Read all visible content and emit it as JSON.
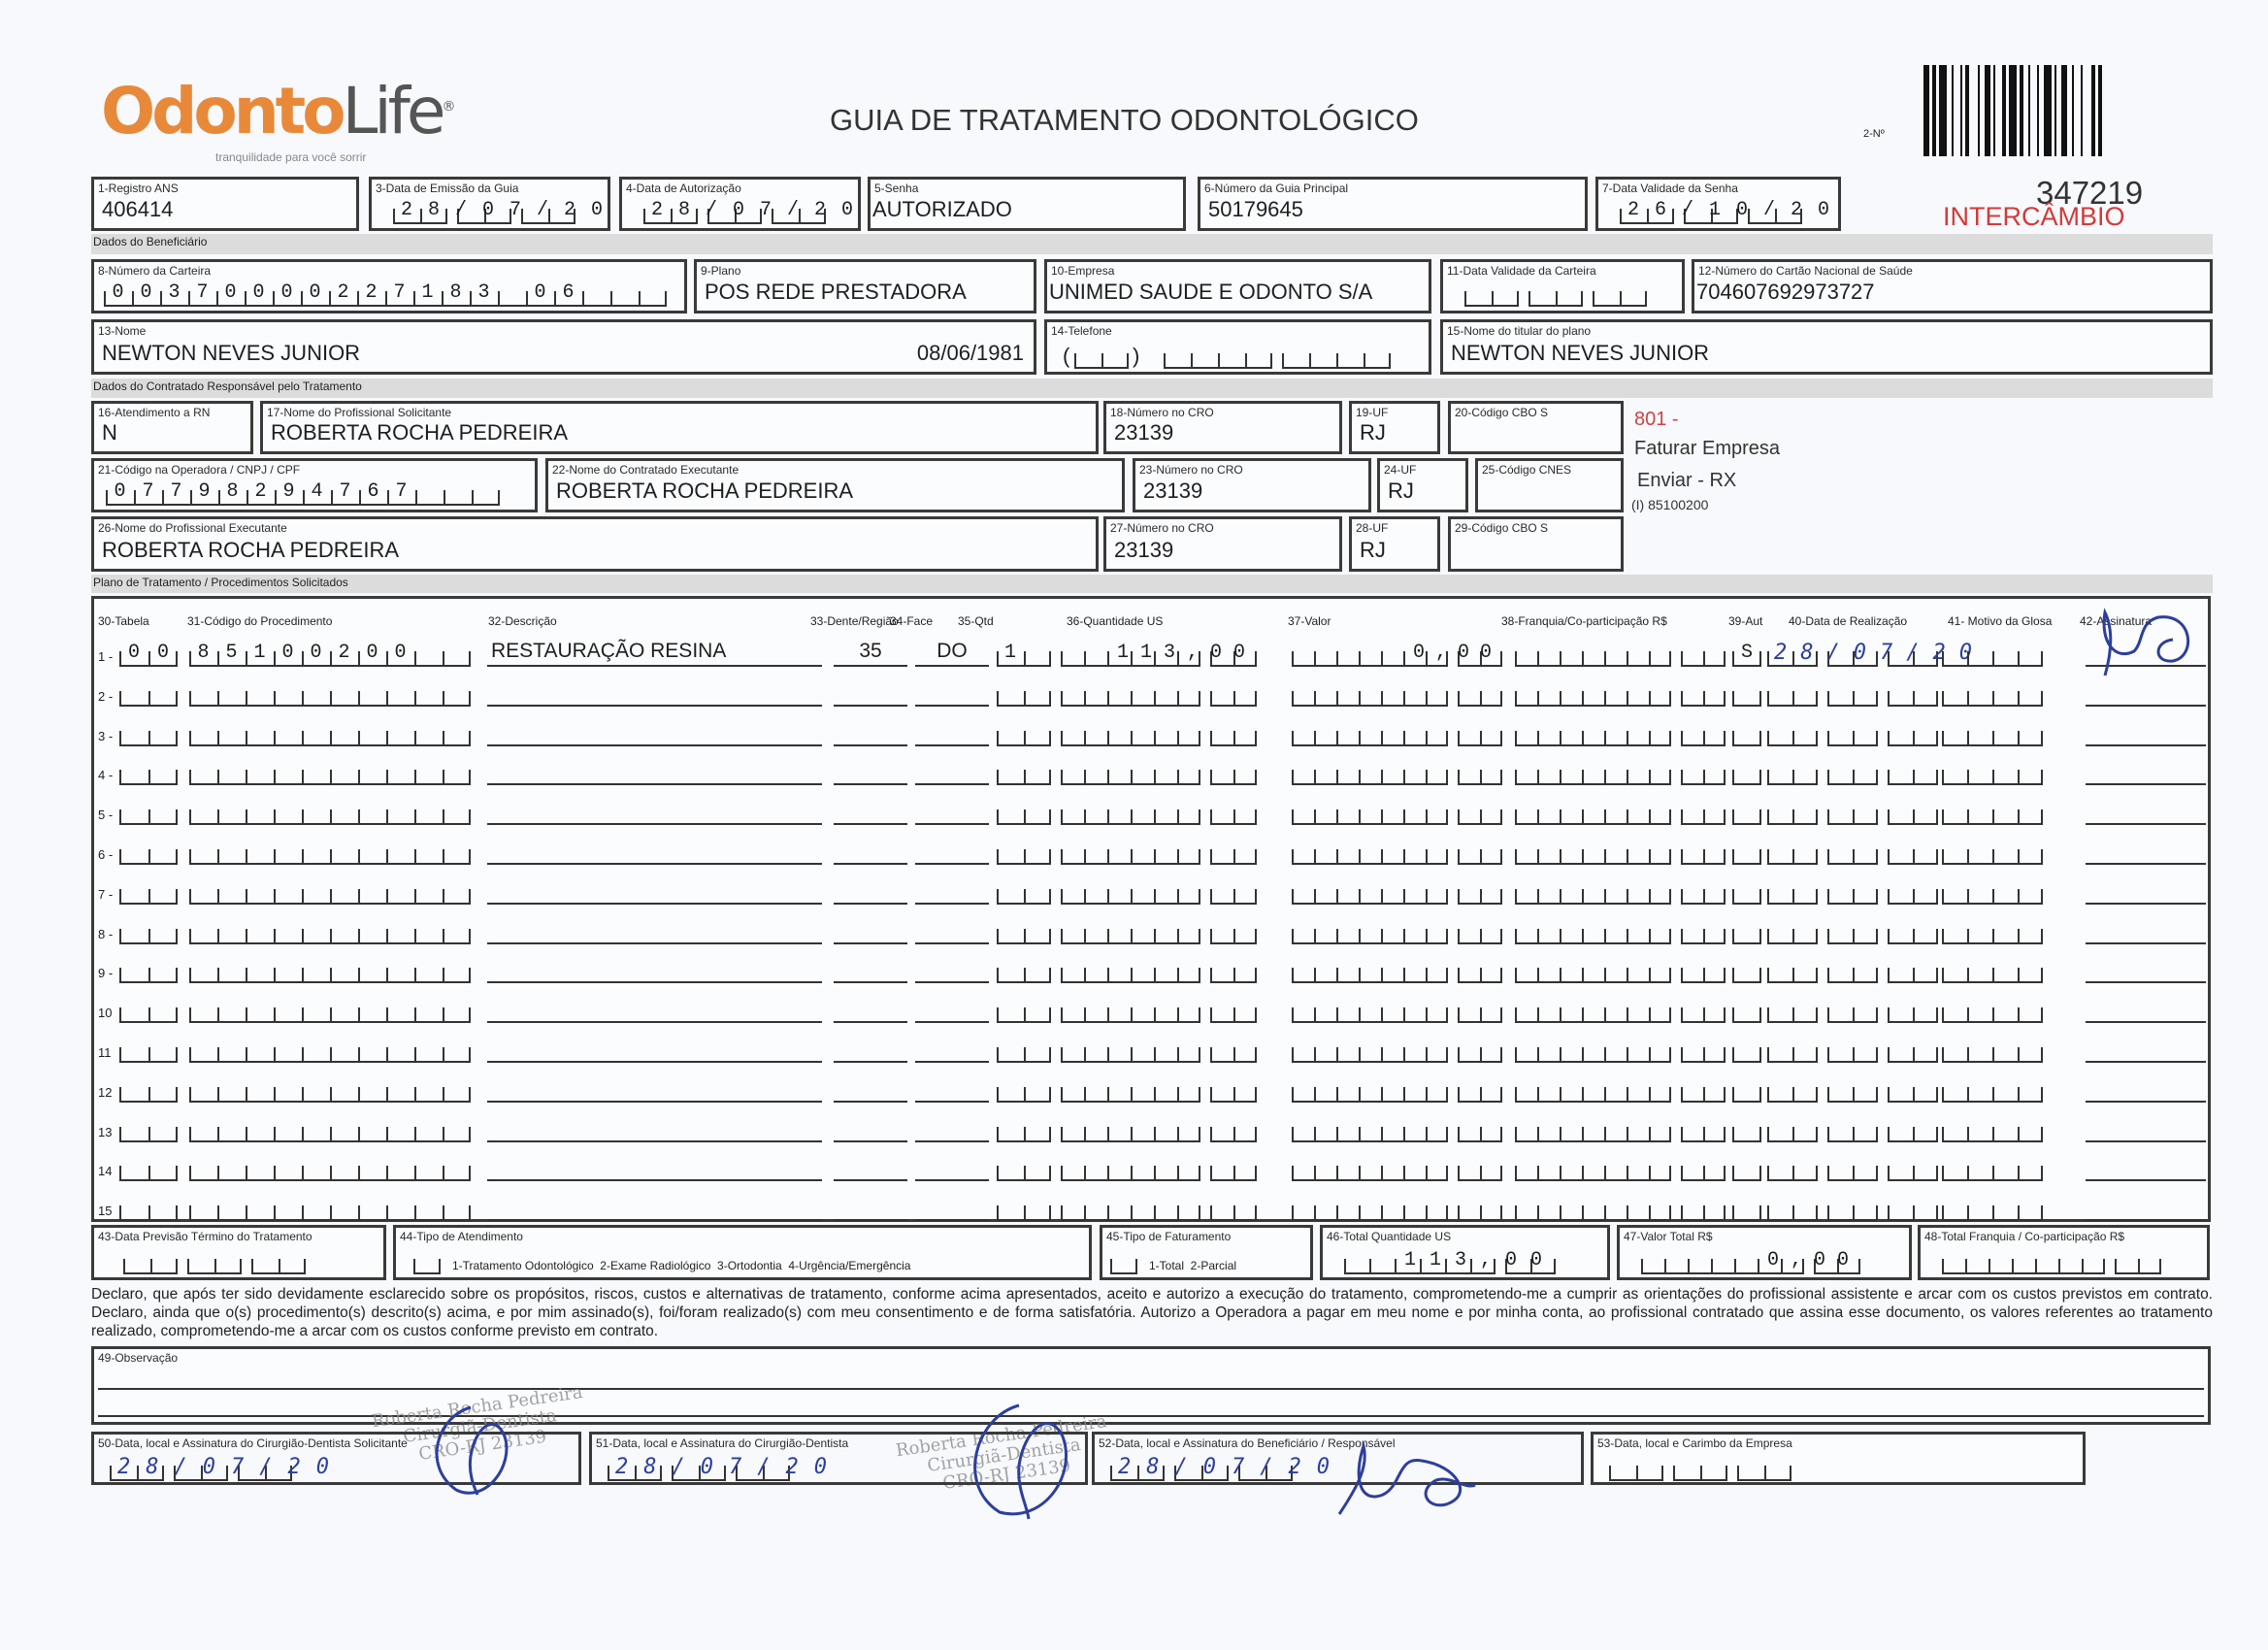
{
  "header": {
    "logo_text": "OdontoLife",
    "logo_tagline": "tranquilidade para você sorrir",
    "title": "GUIA DE TRATAMENTO ODONTOLÓGICO",
    "guide_number_label": "2-Nº",
    "guide_number": "347219",
    "tag": "INTERCÂMBIO",
    "brand_color": "#e8893a",
    "tag_color": "#d23a3a"
  },
  "fields": {
    "f1": {
      "label": "1-Registro ANS",
      "value": "406414"
    },
    "f3": {
      "label": "3-Data de Emissão da Guia",
      "value": "28/07/20"
    },
    "f4": {
      "label": "4-Data de Autorização",
      "value": "28/07/20"
    },
    "f5": {
      "label": "5-Senha",
      "value": "AUTORIZADO"
    },
    "f6": {
      "label": "6-Número da Guia Principal",
      "value": "50179645"
    },
    "f7": {
      "label": "7-Data Validade da Senha",
      "value": "26/10/20"
    },
    "f8": {
      "label": "8-Número da Carteira",
      "value": "00370000227183 06"
    },
    "f9": {
      "label": "9-Plano",
      "value": "POS REDE PRESTADORA"
    },
    "f10": {
      "label": "10-Empresa",
      "value": "UNIMED SAUDE E ODONTO S/A"
    },
    "f11": {
      "label": "11-Data Validade da Carteira",
      "value": ""
    },
    "f12": {
      "label": "12-Número do Cartão Nacional de Saúde",
      "value": "704607692973727"
    },
    "f13": {
      "label": "13-Nome",
      "value": "NEWTON NEVES JUNIOR",
      "birth_date": "08/06/1981"
    },
    "f14": {
      "label": "14-Telefone",
      "value": ""
    },
    "f15": {
      "label": "15-Nome do titular do plano",
      "value": "NEWTON NEVES JUNIOR"
    },
    "f16": {
      "label": "16-Atendimento a RN",
      "value": "N"
    },
    "f17": {
      "label": "17-Nome do Profissional Solicitante",
      "value": "ROBERTA ROCHA PEDREIRA"
    },
    "f18": {
      "label": "18-Número no CRO",
      "value": "23139"
    },
    "f19": {
      "label": "19-UF",
      "value": "RJ"
    },
    "f20": {
      "label": "20-Código CBO S",
      "value": ""
    },
    "f21": {
      "label": "21-Código na Operadora / CNPJ / CPF",
      "value": "07798294767"
    },
    "f22": {
      "label": "22-Nome do Contratado Executante",
      "value": "ROBERTA ROCHA PEDREIRA"
    },
    "f23": {
      "label": "23-Número no CRO",
      "value": "23139"
    },
    "f24": {
      "label": "24-UF",
      "value": "RJ"
    },
    "f25": {
      "label": "25-Código CNES",
      "value": ""
    },
    "f26": {
      "label": "26-Nome do Profissional Executante",
      "value": "ROBERTA ROCHA PEDREIRA"
    },
    "f27": {
      "label": "27-Número no CRO",
      "value": "23139"
    },
    "f28": {
      "label": "28-UF",
      "value": "RJ"
    },
    "f29": {
      "label": "29-Código CBO S",
      "value": ""
    },
    "f43": {
      "label": "43-Data Previsão Término do Tratamento",
      "value": ""
    },
    "f44": {
      "label": "44-Tipo de Atendimento",
      "value": "",
      "options": "1-Tratamento Odontológico  2-Exame Radiológico  3-Ortodontia  4-Urgência/Emergência"
    },
    "f45": {
      "label": "45-Tipo de Faturamento",
      "value": "",
      "options": "1-Total  2-Parcial"
    },
    "f46": {
      "label": "46-Total Quantidade US",
      "value": "113,00"
    },
    "f47": {
      "label": "47-Valor Total R$",
      "value": "0,00"
    },
    "f48": {
      "label": "48-Total Franquia / Co-participação R$",
      "value": ""
    },
    "f49": {
      "label": "49-Observação",
      "value": ""
    },
    "f50": {
      "label": "50-Data, local e Assinatura do Cirurgião-Dentista Solicitante",
      "value": "28/07/20"
    },
    "f51": {
      "label": "51-Data, local e Assinatura do Cirurgião-Dentista",
      "value": "28/07/20"
    },
    "f52": {
      "label": "52-Data, local e Assinatura do Beneficiário / Responsável",
      "value": "28/07/20"
    },
    "f53": {
      "label": "53-Data, local e Carimbo da Empresa",
      "value": ""
    }
  },
  "sections": {
    "beneficiario": "Dados do Beneficiário",
    "contratado": "Dados do Contratado Responsável pelo Tratamento",
    "plano": "Plano de Tratamento / Procedimentos Solicitados"
  },
  "notes": {
    "code": "801 -",
    "line1": "Faturar Empresa",
    "line2": "Enviar - RX",
    "line3": "(I) 85100200"
  },
  "procedures": {
    "headers": [
      "30-Tabela",
      "31-Código do Procedimento",
      "32-Descrição",
      "33-Dente/Região",
      "34-Face",
      "35-Qtd",
      "36-Quantidade US",
      "37-Valor",
      "38-Franquia/Co-participação R$",
      "39-Aut",
      "40-Data de Realização",
      "41- Motivo da Glosa",
      "42-Assinatura"
    ],
    "rows": [
      {
        "n": "1 -",
        "tabela": "00",
        "codigo": "85100200",
        "descricao": "RESTAURAÇÃO RESINA",
        "dente": "35",
        "face": "DO",
        "qtd": "1",
        "us": "113,00",
        "valor": "0,00",
        "franquia": "",
        "aut": "S",
        "data": "28/07/20",
        "motivo": ""
      },
      {
        "n": "2 -"
      },
      {
        "n": "3 -"
      },
      {
        "n": "4 -"
      },
      {
        "n": "5 -"
      },
      {
        "n": "6 -"
      },
      {
        "n": "7 -"
      },
      {
        "n": "8 -"
      },
      {
        "n": "9 -"
      },
      {
        "n": "10"
      },
      {
        "n": "11"
      },
      {
        "n": "12"
      },
      {
        "n": "13"
      },
      {
        "n": "14"
      },
      {
        "n": "15"
      }
    ]
  },
  "declaration": "Declaro, que após ter sido devidamente esclarecido sobre os propósitos, riscos, custos e alternativas de tratamento, conforme acima apresentados, aceito e autorizo a execução do tratamento, comprometendo-me a cumprir as orientações do profissional assistente e arcar com os custos previstos em contrato. Declaro, ainda que o(s) procedimento(s) descrito(s) acima, e por mim assinado(s), foi/foram realizado(s) com meu consentimento e de forma satisfatória. Autorizo a Operadora a pagar em meu nome e por minha conta, ao profissional contratado que assina esse documento, os valores referentes ao tratamento realizado, comprometendo-me a arcar com os custos conforme previsto em contrato.",
  "stamp": {
    "name": "Roberta Rocha Pedreira",
    "title": "Cirurgiã-Dentista",
    "cro": "CRO-RJ 23139"
  }
}
